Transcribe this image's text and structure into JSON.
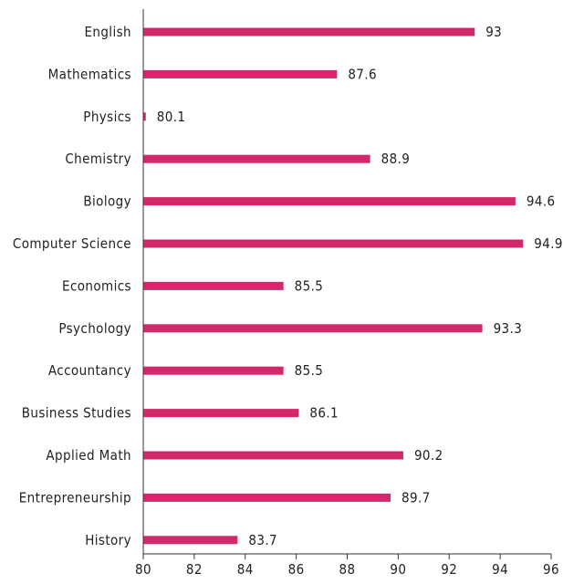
{
  "chart_data": {
    "type": "bar",
    "orientation": "horizontal",
    "categories": [
      "English",
      "Mathematics",
      "Physics",
      "Chemistry",
      "Biology",
      "Computer Science",
      "Economics",
      "Psychology",
      "Accountancy",
      "Business Studies",
      "Applied Math",
      "Entrepreneurship",
      "History"
    ],
    "values": [
      93,
      87.6,
      80.1,
      88.9,
      94.6,
      94.9,
      85.5,
      93.3,
      85.5,
      86.1,
      90.2,
      89.7,
      83.7
    ],
    "value_labels": [
      "93",
      "87.6",
      "80.1",
      "88.9",
      "94.6",
      "94.9",
      "85.5",
      "93.3",
      "85.5",
      "86.1",
      "90.2",
      "89.7",
      "83.7"
    ],
    "xlim": [
      80,
      96
    ],
    "xticks": [
      80,
      82,
      84,
      86,
      88,
      90,
      92,
      94,
      96
    ],
    "xtick_labels": [
      "80",
      "82",
      "84",
      "86",
      "88",
      "90",
      "92",
      "94",
      "96"
    ],
    "title": "",
    "xlabel": "",
    "ylabel": "",
    "bar_color": "#d3286b",
    "grid": false,
    "legend": "none"
  }
}
